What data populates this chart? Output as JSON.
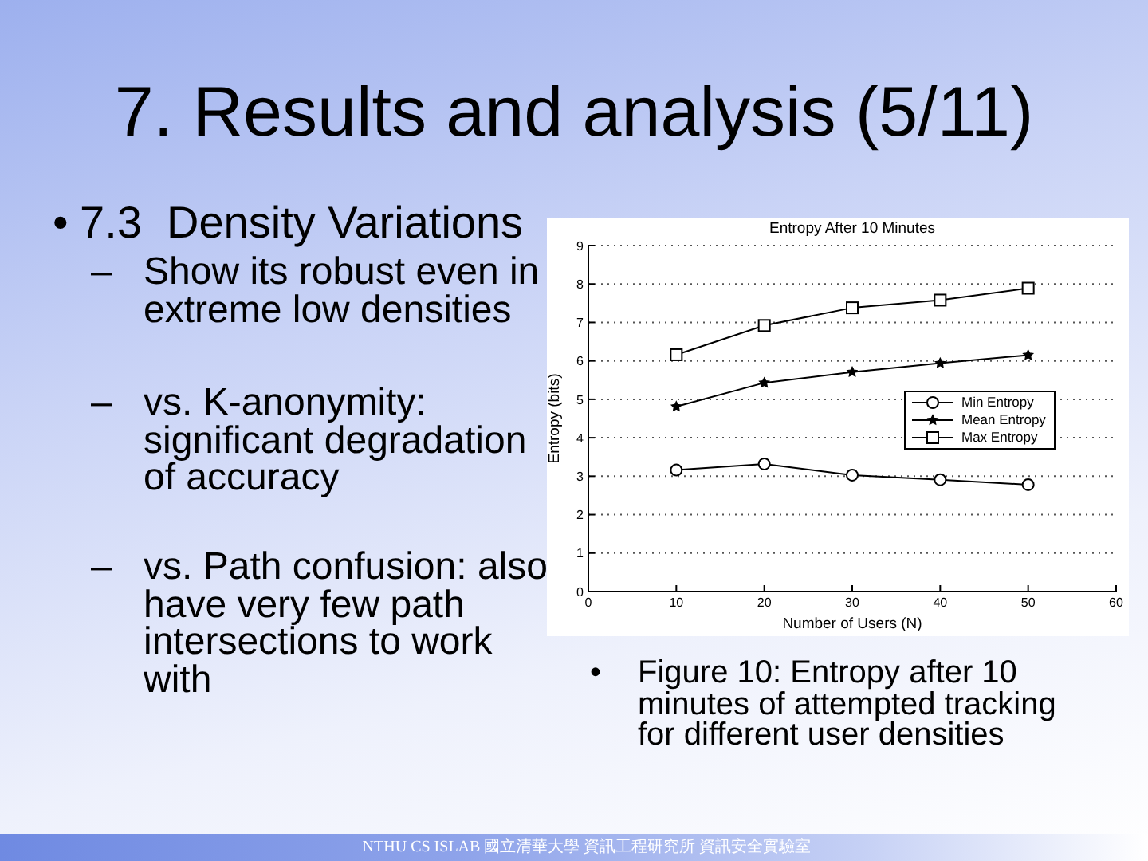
{
  "chart_data": {
    "type": "line",
    "title": "Entropy After 10 Minutes",
    "xlabel": "Number of Users (N)",
    "ylabel": "Entropy (bits)",
    "x": [
      10,
      20,
      30,
      40,
      50
    ],
    "series": [
      {
        "name": "Min Entropy",
        "color": "#000000",
        "marker": "circle",
        "values": [
          3.16,
          3.32,
          3.03,
          2.91,
          2.78
        ]
      },
      {
        "name": "Mean Entropy",
        "color": "#000000",
        "marker": "star",
        "values": [
          4.81,
          5.43,
          5.71,
          5.94,
          6.15
        ]
      },
      {
        "name": "Max Entropy",
        "color": "#000000",
        "marker": "square",
        "values": [
          6.16,
          6.92,
          7.38,
          7.58,
          7.89
        ]
      }
    ],
    "xlim": [
      0,
      60
    ],
    "xticks": [
      0,
      10,
      20,
      30,
      40,
      50,
      60
    ],
    "ylim": [
      0,
      9
    ],
    "yticks": [
      0,
      1,
      2,
      3,
      4,
      5,
      6,
      7,
      8,
      9
    ],
    "grid": "y",
    "legend": "right",
    "line_style": "solid",
    "annotations": [
      "7. Results and analysis (5/11)",
      "• 7.3  Density Variations",
      "– Show its robust even in extreme low densities",
      "– vs. K-anonymity: significant degradation of accuracy",
      "– vs. Path confusion: also have very few path intersections to work with",
      "• Figure 10: Entropy after 10 minutes of attempted tracking for different user densities",
      "NTHU CS ISLAB 國立清華大學 資訊工程研究所 資訊安全實驗室"
    ]
  }
}
